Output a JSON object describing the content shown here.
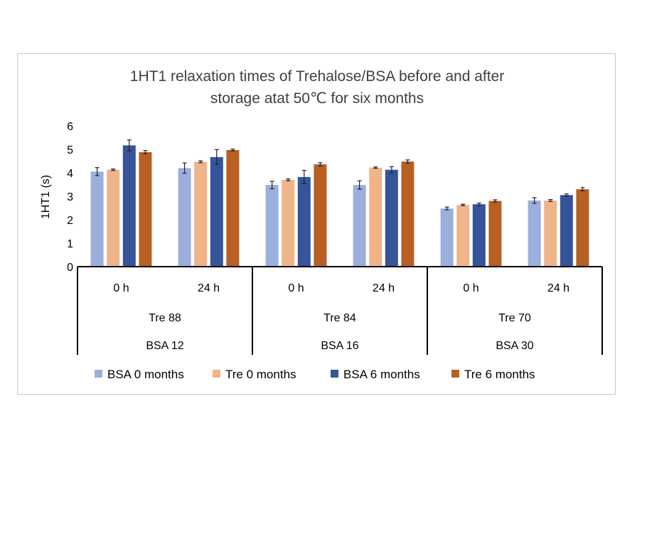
{
  "chart_data": {
    "type": "bar",
    "title_lines": [
      "1HT1 relaxation times of Trehalose/BSA before and after",
      "storage atat 50℃ for six months"
    ],
    "ylabel": "1HT1 (s)",
    "xlabel": "",
    "ylim": [
      0,
      6
    ],
    "yticks": [
      0,
      1,
      2,
      3,
      4,
      5,
      6
    ],
    "grid": false,
    "legend_position": "bottom",
    "categories": [
      "0 h",
      "24 h",
      "0 h",
      "24 h",
      "0 h",
      "24 h"
    ],
    "groups": [
      {
        "tre": "Tre 88",
        "bsa": "BSA 12"
      },
      {
        "tre": "Tre 84",
        "bsa": "BSA 16"
      },
      {
        "tre": "Tre 70",
        "bsa": "BSA 30"
      }
    ],
    "series": [
      {
        "name": "BSA 0 months",
        "color": "#9aafdc",
        "values": [
          4.05,
          4.2,
          3.48,
          3.48,
          2.48,
          2.82
        ],
        "errors": [
          0.17,
          0.22,
          0.16,
          0.18,
          0.06,
          0.12
        ]
      },
      {
        "name": "Tre 0 months",
        "color": "#f0b48a",
        "values": [
          4.13,
          4.47,
          3.7,
          4.22,
          2.63,
          2.82
        ],
        "errors": [
          0.03,
          0.04,
          0.04,
          0.03,
          0.03,
          0.04
        ]
      },
      {
        "name": "BSA 6 months",
        "color": "#36549a",
        "values": [
          5.17,
          4.67,
          3.82,
          4.13,
          2.66,
          3.05
        ],
        "errors": [
          0.23,
          0.32,
          0.28,
          0.13,
          0.05,
          0.05
        ]
      },
      {
        "name": "Tre 6 months",
        "color": "#b85f24",
        "values": [
          4.88,
          4.97,
          4.36,
          4.48,
          2.8,
          3.3
        ],
        "errors": [
          0.07,
          0.04,
          0.07,
          0.07,
          0.05,
          0.07
        ]
      }
    ]
  }
}
